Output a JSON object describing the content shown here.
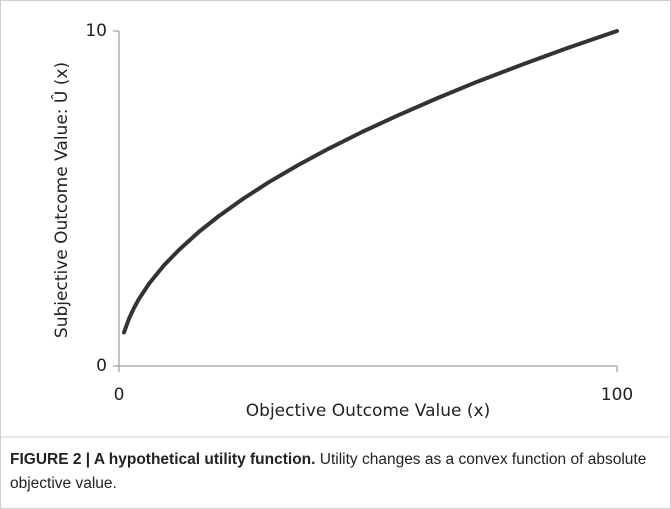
{
  "chart_data": {
    "type": "line",
    "xlabel": "Objective Outcome Value (x)",
    "ylabel": "Subjective Outcome Value: Û (x)",
    "x": [
      1,
      2,
      3,
      4,
      6,
      9,
      12,
      16,
      20,
      25,
      30,
      36,
      42,
      49,
      56,
      64,
      72,
      81,
      90,
      100
    ],
    "values": [
      1,
      1.41,
      1.73,
      2,
      2.45,
      3,
      3.46,
      4,
      4.47,
      5,
      5.48,
      6,
      6.48,
      7,
      7.48,
      8,
      8.49,
      9,
      9.49,
      10
    ],
    "color": "#333333",
    "xlim": [
      0,
      100
    ],
    "ylim": [
      0,
      10
    ],
    "xticks": [
      0,
      100
    ],
    "yticks": [
      0,
      10
    ]
  },
  "caption": {
    "title": "FIGURE 2 | A hypothetical utility function.",
    "text": "Utility changes as a convex function of absolute objective value."
  }
}
